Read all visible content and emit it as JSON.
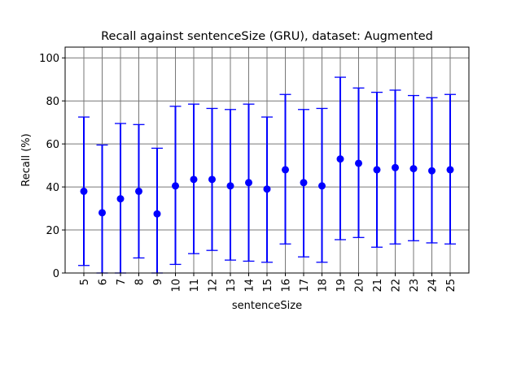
{
  "chart_data": {
    "type": "scatter",
    "title": "Recall against sentenceSize (GRU), dataset: Augmented",
    "xlabel": "sentenceSize",
    "ylabel": "Recall (%)",
    "ylim": [
      0,
      105
    ],
    "yticks": [
      0,
      20,
      40,
      60,
      80,
      100
    ],
    "grid": true,
    "legend": "none",
    "categories": [
      "5",
      "6",
      "7",
      "8",
      "9",
      "10",
      "11",
      "12",
      "13",
      "14",
      "15",
      "16",
      "17",
      "18",
      "19",
      "20",
      "21",
      "22",
      "23",
      "24",
      "25"
    ],
    "series": [
      {
        "color": "#0000ff",
        "marker": "circle",
        "values": [
          38,
          28,
          34.5,
          38,
          27.5,
          40.5,
          43.5,
          43.5,
          40.5,
          42,
          39,
          48,
          42,
          40.5,
          53,
          51,
          48,
          49,
          48.5,
          47.5,
          48
        ],
        "error_low": [
          3.5,
          0,
          0,
          7,
          0,
          4,
          9,
          10.5,
          6,
          5.5,
          5,
          13.5,
          7.5,
          5,
          15.5,
          16.5,
          12,
          13.5,
          15,
          14,
          13.5
        ],
        "error_high": [
          72.5,
          59.5,
          69.5,
          69,
          58,
          77.5,
          78.5,
          76.5,
          76,
          78.5,
          72.5,
          83,
          76,
          76.5,
          91,
          86,
          84,
          85,
          82.5,
          81.5,
          83
        ]
      }
    ]
  }
}
